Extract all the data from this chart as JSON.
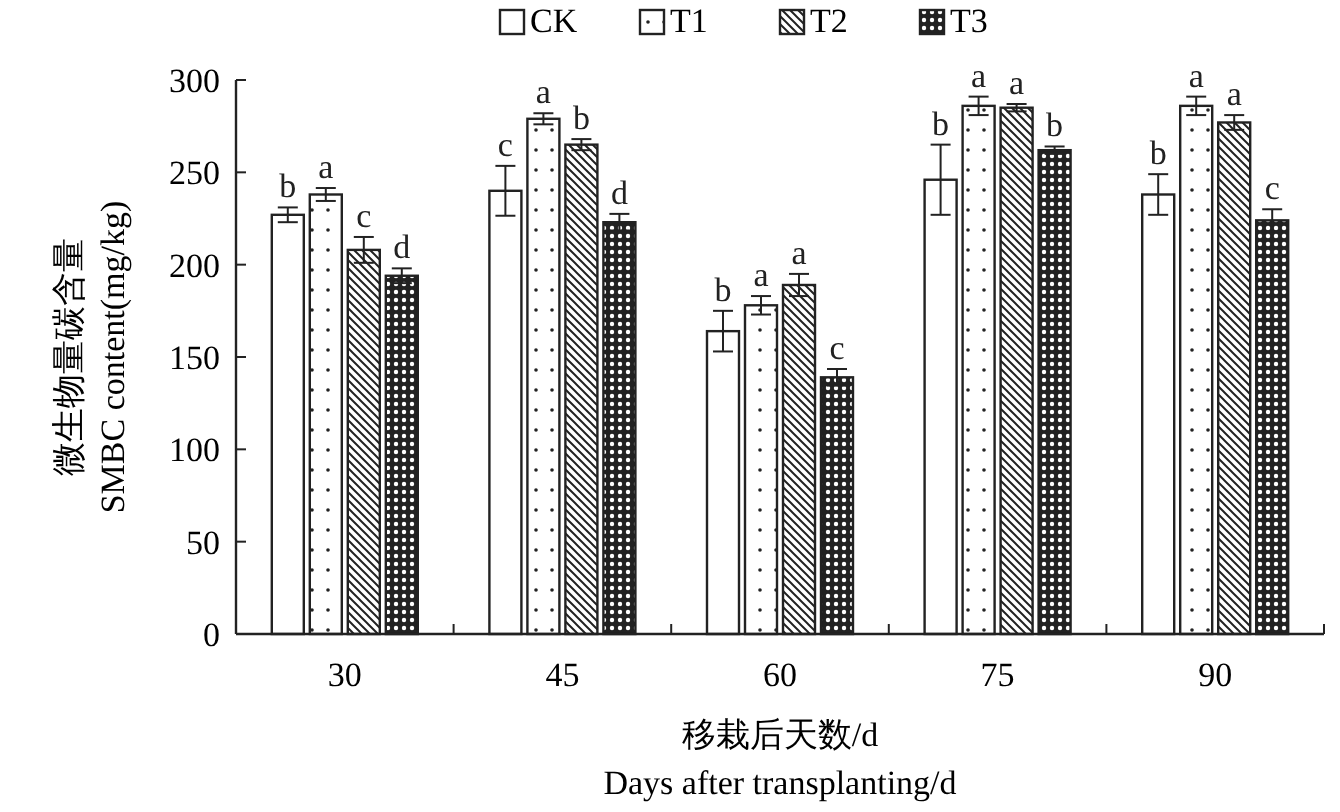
{
  "chart_data": {
    "type": "bar",
    "xlabel": "移栽后天数/d\nDays after transplanting/d",
    "ylabel": "微生物量碳含量\nSMBC content(mg/kg)",
    "categories": [
      "30",
      "45",
      "60",
      "75",
      "90"
    ],
    "ylim": [
      0,
      300
    ],
    "yticks": [
      0,
      50,
      100,
      150,
      200,
      250,
      300
    ],
    "legend": "top",
    "grid": false,
    "series": [
      {
        "name": "CK",
        "color": "#222222",
        "values": [
          227,
          240,
          164,
          246,
          238
        ],
        "errors": [
          4,
          13.5,
          11,
          19,
          11
        ],
        "value_labels": [
          "b",
          "c",
          "b",
          "b",
          "b"
        ]
      },
      {
        "name": "T1",
        "color": "#222222",
        "values": [
          238,
          279,
          178,
          286,
          286
        ],
        "errors": [
          3.5,
          3,
          5,
          5,
          5
        ],
        "value_labels": [
          "a",
          "a",
          "a",
          "a",
          "a"
        ]
      },
      {
        "name": "T2",
        "color": "#222222",
        "values": [
          208,
          265,
          189,
          285,
          277
        ],
        "errors": [
          7,
          3,
          6,
          2,
          4
        ],
        "value_labels": [
          "c",
          "b",
          "a",
          "a",
          "a"
        ]
      },
      {
        "name": "T3",
        "color": "#222222",
        "values": [
          194,
          223,
          139,
          262,
          224
        ],
        "errors": [
          4,
          4.5,
          4.5,
          2,
          6
        ],
        "value_labels": [
          "d",
          "d",
          "c",
          "b",
          "c"
        ]
      }
    ]
  }
}
